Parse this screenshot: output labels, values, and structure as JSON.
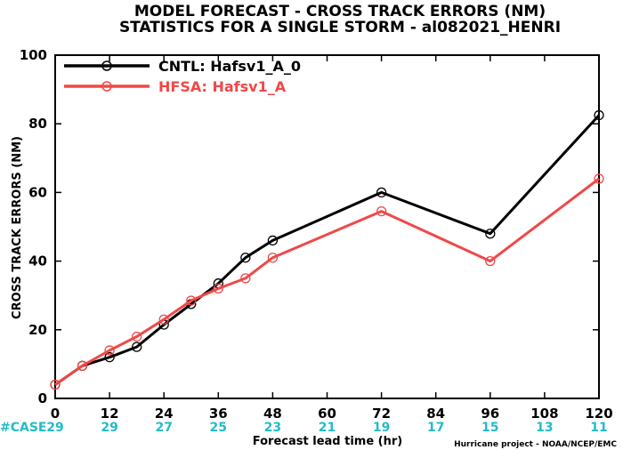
{
  "chart_data": {
    "type": "line",
    "title": "MODEL FORECAST - CROSS TRACK ERRORS (NM)",
    "subtitle": "STATISTICS FOR A SINGLE STORM - al082021_HENRI",
    "xlabel": "Forecast lead time (hr)",
    "ylabel": "CROSS TRACK ERRORS (NM)",
    "xlim": [
      0,
      120
    ],
    "ylim": [
      0,
      100
    ],
    "x_ticks": [
      0,
      12,
      24,
      36,
      48,
      60,
      72,
      84,
      96,
      108,
      120
    ],
    "y_ticks": [
      0,
      20,
      40,
      60,
      80,
      100
    ],
    "grid": false,
    "legend_position": "top-left",
    "case_label": "#CASE",
    "case_counts": [
      29,
      29,
      27,
      25,
      23,
      21,
      19,
      17,
      15,
      13,
      11
    ],
    "credit": "Hurricane project - NOAA/NCEP/EMC",
    "series": [
      {
        "name": "CNTL: Hafsv1_A_0",
        "color": "#000000",
        "x": [
          0,
          6,
          12,
          18,
          24,
          30,
          36,
          42,
          48,
          72,
          96,
          120
        ],
        "values": [
          4,
          9.5,
          12,
          15,
          21.5,
          27.5,
          33.5,
          41,
          46,
          60,
          48,
          82.5
        ]
      },
      {
        "name": "HFSA: Hafsv1_A",
        "color": "#f04848",
        "x": [
          0,
          6,
          12,
          18,
          24,
          30,
          36,
          42,
          48,
          72,
          96,
          120
        ],
        "values": [
          4,
          9.5,
          14,
          18,
          23,
          28.5,
          32,
          35,
          41,
          54.5,
          40,
          64
        ]
      }
    ]
  }
}
